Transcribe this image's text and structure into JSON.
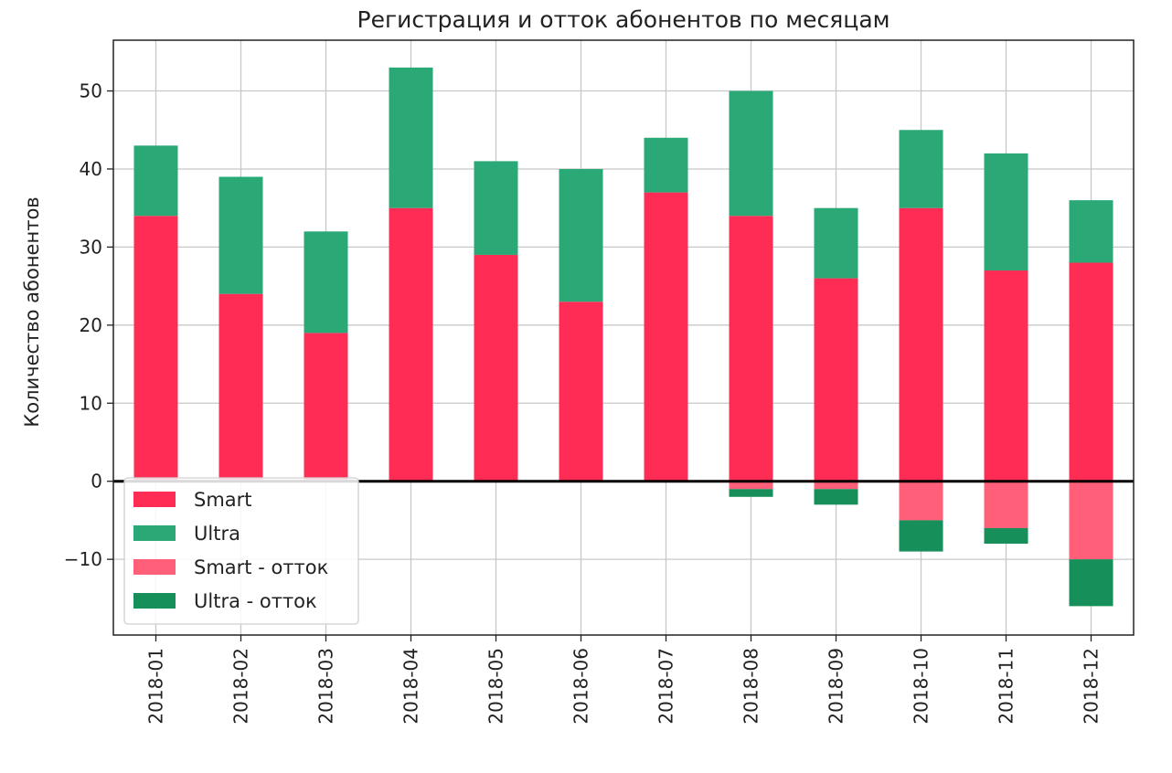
{
  "chart_data": {
    "type": "bar",
    "stacked": true,
    "title": "Регистрация и отток абонентов по месяцам",
    "xlabel": "",
    "ylabel": "Количество абонентов",
    "categories": [
      "2018-01",
      "2018-02",
      "2018-03",
      "2018-04",
      "2018-05",
      "2018-06",
      "2018-07",
      "2018-08",
      "2018-09",
      "2018-10",
      "2018-11",
      "2018-12"
    ],
    "series": [
      {
        "name": "Smart",
        "color": "#ff2d55",
        "values": [
          34,
          24,
          19,
          35,
          29,
          23,
          37,
          34,
          26,
          35,
          27,
          28
        ]
      },
      {
        "name": "Ultra",
        "color": "#2aa876",
        "values": [
          9,
          15,
          13,
          18,
          12,
          17,
          7,
          16,
          9,
          10,
          15,
          8
        ]
      },
      {
        "name": "Smart - отток",
        "color": "#ff5f78",
        "values": [
          0,
          0,
          0,
          0,
          0,
          0,
          0,
          -1,
          -1,
          -5,
          -6,
          -10
        ]
      },
      {
        "name": "Ultra - отток",
        "color": "#168f5a",
        "values": [
          0,
          0,
          0,
          0,
          0,
          0,
          0,
          -1,
          -2,
          -4,
          -2,
          -6
        ]
      }
    ],
    "yticks": [
      -10,
      0,
      10,
      20,
      30,
      40,
      50
    ],
    "ytick_labels": [
      "−10",
      "0",
      "10",
      "20",
      "30",
      "40",
      "50"
    ],
    "ylim": [
      -19.7,
      56.5
    ],
    "grid": true,
    "zero_line": true,
    "legend_position": "lower-left"
  }
}
